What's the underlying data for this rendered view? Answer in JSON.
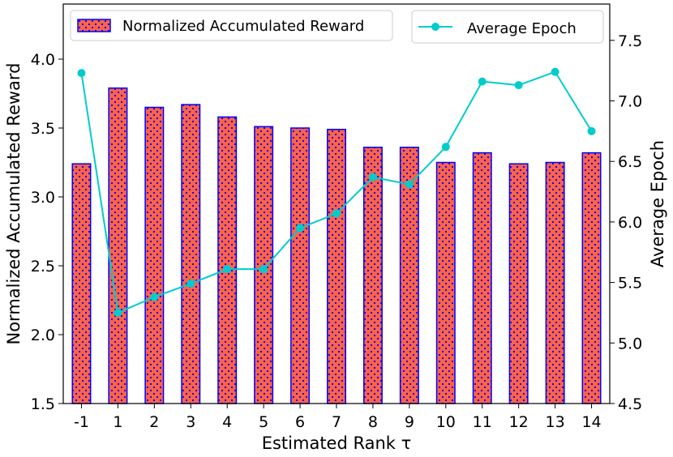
{
  "chart_data": {
    "type": "bar+line",
    "categories": [
      "-1",
      "1",
      "2",
      "3",
      "4",
      "5",
      "6",
      "7",
      "8",
      "9",
      "10",
      "11",
      "12",
      "13",
      "14"
    ],
    "xlabel": "Estimated Rank τ",
    "ylabel_left": "Normalized Accumulated Reward",
    "ylabel_right": "Average Epoch",
    "ylim_left": [
      1.5,
      4.4
    ],
    "ylim_right": [
      4.5,
      7.8
    ],
    "yticks_left": [
      "1.5",
      "2.0",
      "2.5",
      "3.0",
      "3.5",
      "4.0"
    ],
    "yticks_right": [
      "4.5",
      "5.0",
      "5.5",
      "6.0",
      "6.5",
      "7.0",
      "7.5"
    ],
    "grid": false,
    "series": [
      {
        "name": "Normalized Accumulated Reward",
        "type": "bar",
        "axis": "left",
        "values": [
          3.24,
          3.79,
          3.65,
          3.67,
          3.58,
          3.51,
          3.5,
          3.49,
          3.36,
          3.36,
          3.25,
          3.32,
          3.24,
          3.25,
          3.32
        ],
        "color": "#ff6347",
        "edge_color": "#0000ff",
        "hatch": "dots"
      },
      {
        "name": "Average Epoch",
        "type": "line",
        "axis": "right",
        "values": [
          7.23,
          5.25,
          5.38,
          5.49,
          5.61,
          5.61,
          5.95,
          6.07,
          6.37,
          6.31,
          6.62,
          7.16,
          7.13,
          7.24,
          6.75
        ],
        "color": "#00cccc"
      }
    ],
    "legends": [
      {
        "placement": "top-left",
        "label": "Normalized Accumulated Reward"
      },
      {
        "placement": "top-right",
        "label": "Average Epoch"
      }
    ]
  }
}
